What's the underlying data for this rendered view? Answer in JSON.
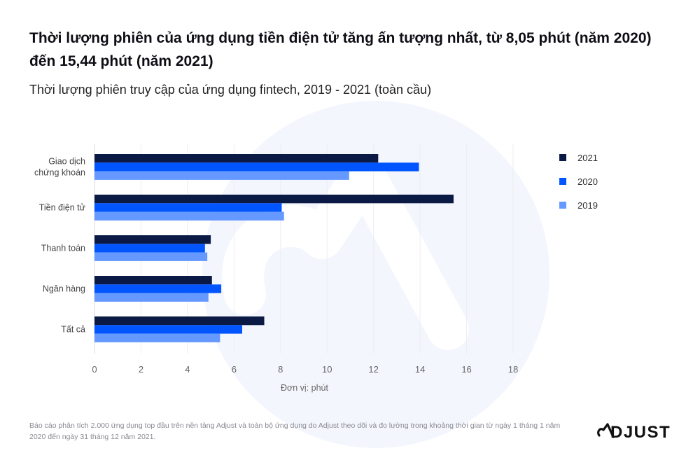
{
  "title": "Thời lượng phiên của ứng dụng tiền điện tử tăng ấn tượng nhất, từ 8,05 phút (năm 2020) đến 15,44 phút (năm 2021)",
  "subtitle": "Thời lượng phiên truy cập của ứng dụng fintech, 2019 - 2021 (toàn cầu)",
  "footnote": "Báo cáo phân tích 2.000 ứng dụng top đầu trên nền tảng Adjust và toàn bộ ứng dụng do Adjust theo dõi và đo lường trong khoảng thời gian từ ngày 1 tháng 1 năm 2020 đến ngày 31 tháng 12 năm 2021.",
  "logo": "ADJUST",
  "chart_data": {
    "type": "bar",
    "orientation": "horizontal",
    "categories": [
      [
        "Giao dịch",
        "chứng khoán"
      ],
      [
        "Tiền điện tử"
      ],
      [
        "Thanh toán"
      ],
      [
        "Ngân hàng"
      ],
      [
        "Tất cả"
      ]
    ],
    "series": [
      {
        "name": "2021",
        "color": "#0b1a45",
        "values": [
          12.2,
          15.44,
          5.0,
          5.05,
          7.3
        ]
      },
      {
        "name": "2020",
        "color": "#0055ff",
        "values": [
          13.95,
          8.05,
          4.75,
          5.45,
          6.35
        ]
      },
      {
        "name": "2019",
        "color": "#6699ff",
        "values": [
          10.95,
          8.15,
          4.85,
          4.9,
          5.4
        ]
      }
    ],
    "xlim": [
      0,
      18
    ],
    "xticks": [
      "0",
      "2",
      "4",
      "6",
      "8",
      "10",
      "12",
      "14",
      "16",
      "18"
    ],
    "xlabel": "Đơn vị: phút",
    "grid": true,
    "legend_position": "right"
  }
}
